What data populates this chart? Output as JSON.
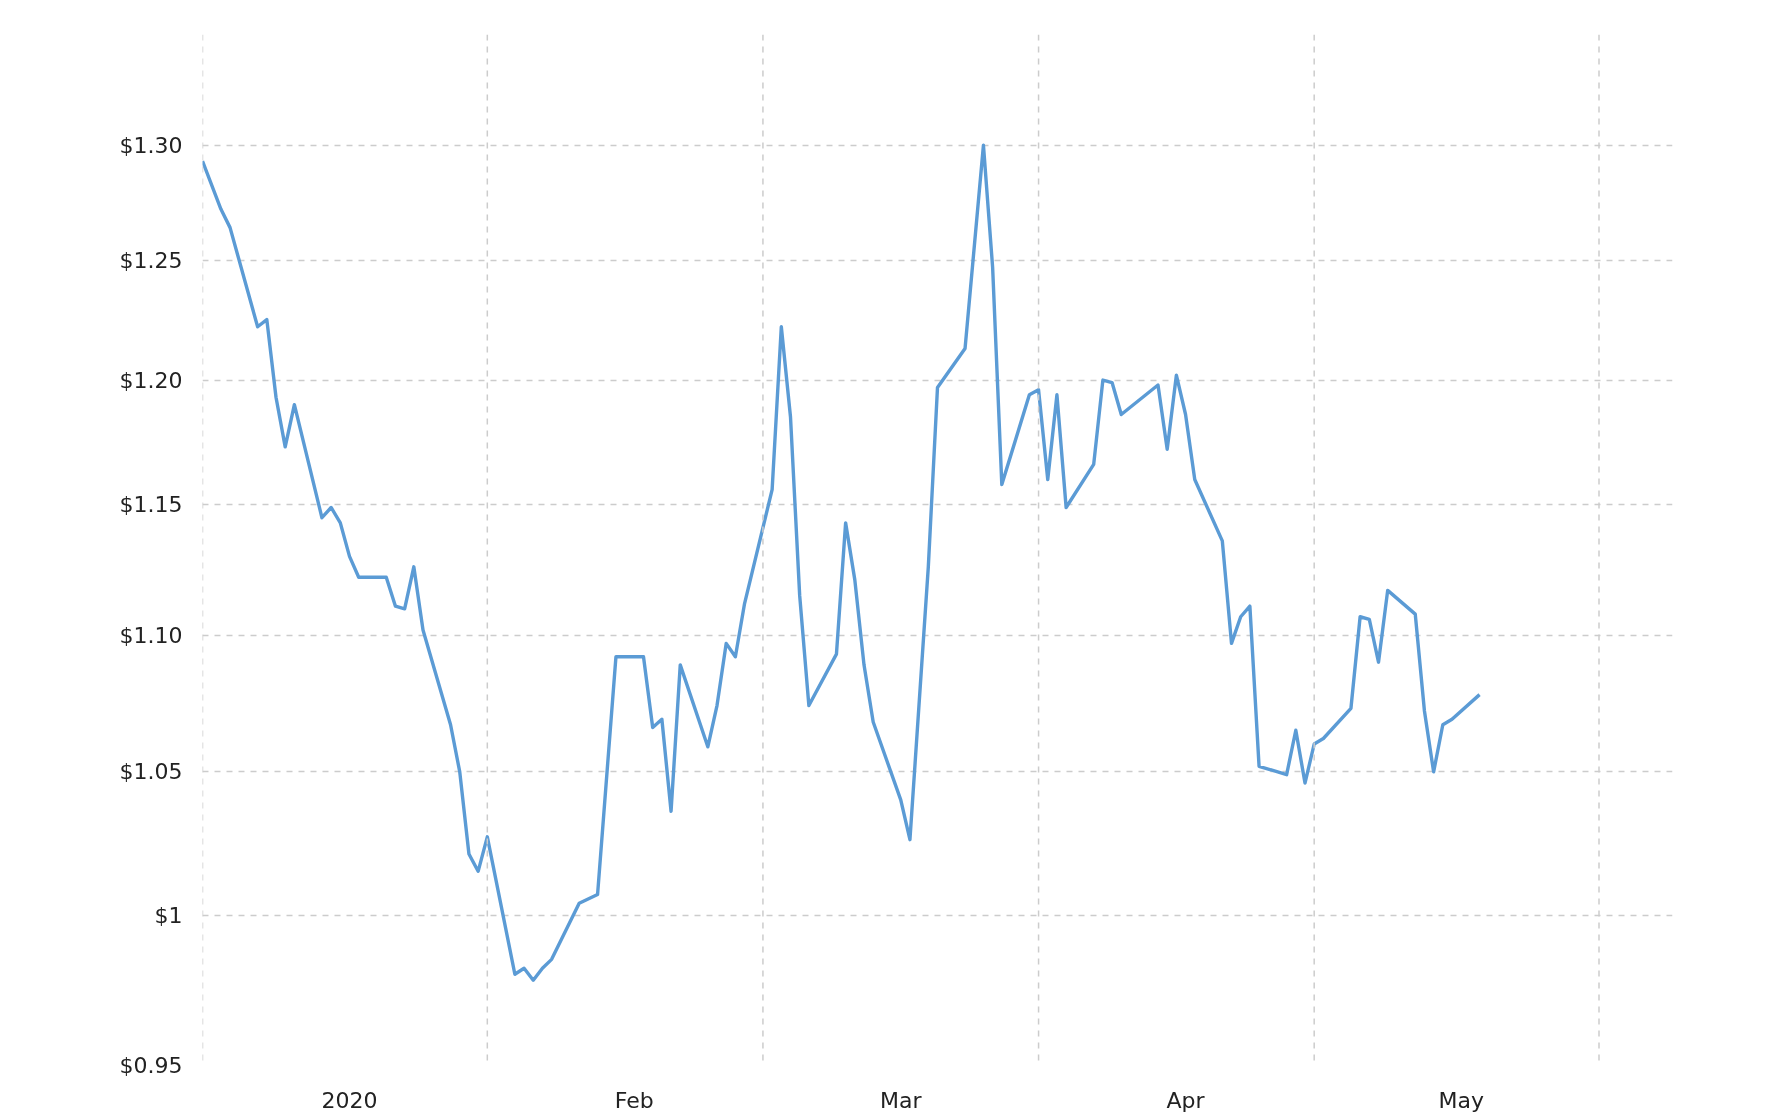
{
  "chart_data": {
    "type": "line",
    "log": "y",
    "grid": true,
    "marker": "none",
    "line_style": "solid",
    "xlim": [
      "2019-12-16",
      "2020-05-24"
    ],
    "xticks": [
      {
        "value": "2020-01-01",
        "label": "2020"
      },
      {
        "value": "2020-02-01",
        "label": "Feb"
      },
      {
        "value": "2020-03-01",
        "label": "Mar"
      },
      {
        "value": "2020-04-01",
        "label": "Apr"
      },
      {
        "value": "2020-05-01",
        "label": "May"
      },
      {
        "value": "2019-12-16",
        "label": null
      },
      {
        "value": "2020-01-16",
        "label": null
      },
      {
        "value": "2020-02-15",
        "label": null
      },
      {
        "value": "2020-03-16",
        "label": null
      },
      {
        "value": "2020-04-15",
        "label": null
      },
      {
        "value": "2020-05-16",
        "label": null
      }
    ],
    "ylim": [
      0.95,
      1.35
    ],
    "yticks": [
      {
        "value": 0.95,
        "label": "$0.95"
      },
      {
        "value": 1.0,
        "label": "$1"
      },
      {
        "value": 1.05,
        "label": "$1.05"
      },
      {
        "value": 1.1,
        "label": "$1.10"
      },
      {
        "value": 1.15,
        "label": "$1.15"
      },
      {
        "value": 1.2,
        "label": "$1.20"
      },
      {
        "value": 1.25,
        "label": "$1.25"
      },
      {
        "value": 1.3,
        "label": "$1.30"
      }
    ],
    "x": [
      "2019-12-16",
      "2019-12-18",
      "2019-12-19",
      "2019-12-22",
      "2019-12-23",
      "2019-12-24",
      "2019-12-25",
      "2019-12-26",
      "2019-12-29",
      "2019-12-30",
      "2019-12-31",
      "2020-01-01",
      "2020-01-02",
      "2020-01-05",
      "2020-01-06",
      "2020-01-07",
      "2020-01-08",
      "2020-01-09",
      "2020-01-12",
      "2020-01-13",
      "2020-01-14",
      "2020-01-15",
      "2020-01-16",
      "2020-01-19",
      "2020-01-20",
      "2020-01-21",
      "2020-01-22",
      "2020-01-23",
      "2020-01-26",
      "2020-01-28",
      "2020-01-30",
      "2020-02-02",
      "2020-02-03",
      "2020-02-04",
      "2020-02-05",
      "2020-02-06",
      "2020-02-09",
      "2020-02-10",
      "2020-02-11",
      "2020-02-12",
      "2020-02-13",
      "2020-02-16",
      "2020-02-17",
      "2020-02-18",
      "2020-02-19",
      "2020-02-20",
      "2020-02-23",
      "2020-02-24",
      "2020-02-25",
      "2020-02-26",
      "2020-02-27",
      "2020-03-01",
      "2020-03-02",
      "2020-03-04",
      "2020-03-05",
      "2020-03-08",
      "2020-03-10",
      "2020-03-11",
      "2020-03-12",
      "2020-03-15",
      "2020-03-16",
      "2020-03-17",
      "2020-03-18",
      "2020-03-19",
      "2020-03-22",
      "2020-03-23",
      "2020-03-24",
      "2020-03-25",
      "2020-03-29",
      "2020-03-30",
      "2020-03-31",
      "2020-04-01",
      "2020-04-02",
      "2020-04-05",
      "2020-04-06",
      "2020-04-07",
      "2020-04-08",
      "2020-04-09",
      "2020-04-12",
      "2020-04-13",
      "2020-04-14",
      "2020-04-15",
      "2020-04-16",
      "2020-04-19",
      "2020-04-20",
      "2020-04-21",
      "2020-04-22",
      "2020-04-23",
      "2020-04-26",
      "2020-04-27",
      "2020-04-28",
      "2020-04-29",
      "2020-04-30",
      "2020-05-03"
    ],
    "series": [
      {
        "color": "#5b9bd5",
        "values": [
          1.293,
          1.272,
          1.264,
          1.222,
          1.225,
          1.193,
          1.173,
          1.19,
          1.145,
          1.149,
          1.143,
          1.13,
          1.122,
          1.122,
          1.111,
          1.11,
          1.126,
          1.102,
          1.067,
          1.05,
          1.021,
          1.015,
          1.027,
          0.98,
          0.982,
          0.978,
          0.982,
          0.985,
          1.004,
          1.007,
          1.092,
          1.092,
          1.066,
          1.069,
          1.036,
          1.089,
          1.059,
          1.074,
          1.097,
          1.092,
          1.112,
          1.156,
          1.222,
          1.185,
          1.115,
          1.074,
          1.093,
          1.143,
          1.121,
          1.089,
          1.068,
          1.04,
          1.026,
          1.126,
          1.197,
          1.213,
          1.3,
          1.247,
          1.158,
          1.194,
          1.196,
          1.16,
          1.194,
          1.149,
          1.166,
          1.2,
          1.199,
          1.186,
          1.198,
          1.172,
          1.202,
          1.186,
          1.16,
          1.136,
          1.097,
          1.107,
          1.111,
          1.052,
          1.049,
          1.065,
          1.046,
          1.06,
          1.062,
          1.073,
          1.107,
          1.106,
          1.09,
          1.117,
          1.108,
          1.072,
          1.05,
          1.067,
          1.069,
          1.078
        ]
      }
    ]
  }
}
